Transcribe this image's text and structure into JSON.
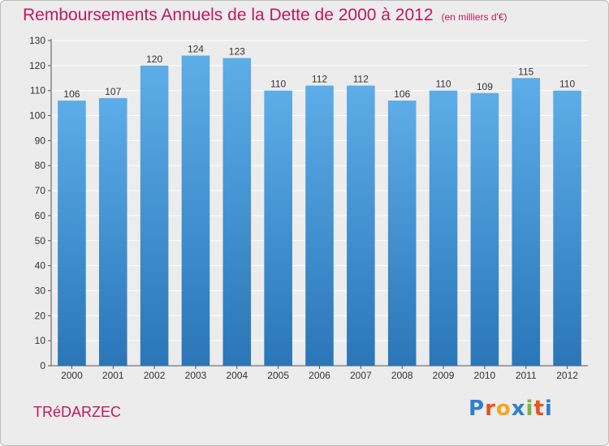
{
  "header": {
    "title": "Remboursements Annuels de la Dette de 2000 à 2012",
    "unit": "(en milliers d'€)"
  },
  "footer": {
    "town": "TRéDARZEC",
    "logo_letters": [
      "P",
      "r",
      "o",
      "x",
      "i",
      "t",
      "i"
    ],
    "logo_colors": [
      "#2e7fd1",
      "#e8531f",
      "#f5a623",
      "#2e7fd1",
      "#7cb342",
      "#e8531f",
      "#2e7fd1"
    ]
  },
  "colors": {
    "bar_top": "#5dade8",
    "bar_bottom": "#2a76b8",
    "grid": "#ffffff",
    "text": "#333333"
  },
  "chart_data": {
    "type": "bar",
    "categories": [
      "2000",
      "2001",
      "2002",
      "2003",
      "2004",
      "2005",
      "2006",
      "2007",
      "2008",
      "2009",
      "2010",
      "2011",
      "2012"
    ],
    "values": [
      106,
      107,
      120,
      124,
      123,
      110,
      112,
      112,
      106,
      110,
      109,
      115,
      110
    ],
    "ylim": [
      0,
      130
    ],
    "yticks": [
      0,
      10,
      20,
      30,
      40,
      50,
      60,
      70,
      80,
      90,
      100,
      110,
      120,
      130
    ],
    "grid": true
  }
}
